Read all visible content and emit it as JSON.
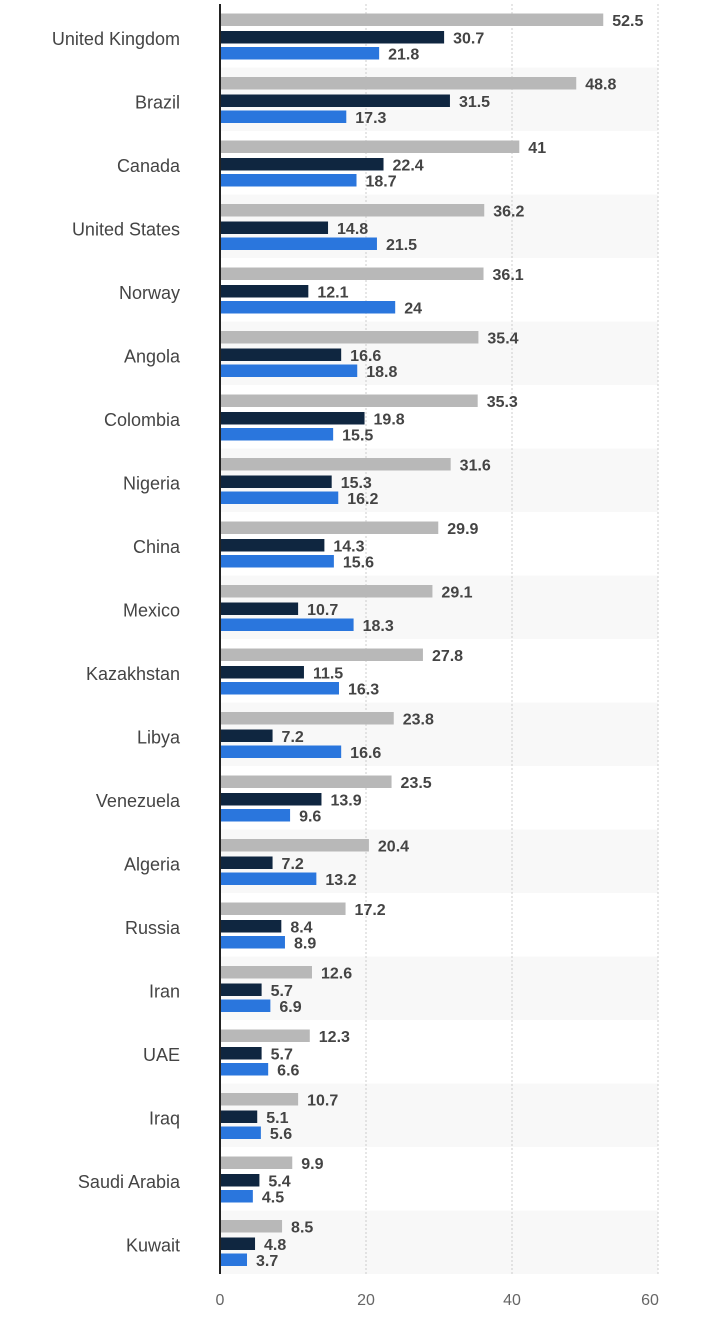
{
  "chart_data": {
    "type": "bar",
    "orientation": "horizontal",
    "categories": [
      "United Kingdom",
      "Brazil",
      "Canada",
      "United States",
      "Norway",
      "Angola",
      "Colombia",
      "Nigeria",
      "China",
      "Mexico",
      "Kazakhstan",
      "Libya",
      "Venezuela",
      "Algeria",
      "Russia",
      "Iran",
      "UAE",
      "Iraq",
      "Saudi Arabia",
      "Kuwait"
    ],
    "series": [
      {
        "color": "#b8b8b8",
        "values": [
          52.5,
          48.8,
          41,
          36.2,
          36.1,
          35.4,
          35.3,
          31.6,
          29.9,
          29.1,
          27.8,
          23.8,
          23.5,
          20.4,
          17.2,
          12.6,
          12.3,
          10.7,
          9.9,
          8.5
        ]
      },
      {
        "color": "#0f2640",
        "values": [
          30.7,
          31.5,
          22.4,
          14.8,
          12.1,
          16.6,
          19.8,
          15.3,
          14.3,
          10.7,
          11.5,
          7.2,
          13.9,
          7.2,
          8.4,
          5.7,
          5.7,
          5.1,
          5.4,
          4.8
        ]
      },
      {
        "color": "#2a76dd",
        "values": [
          21.8,
          17.3,
          18.7,
          21.5,
          24,
          18.8,
          15.5,
          16.2,
          15.6,
          18.3,
          16.3,
          16.6,
          9.6,
          13.2,
          8.9,
          6.9,
          6.6,
          5.6,
          4.5,
          3.7
        ]
      }
    ],
    "xlim": [
      0,
      60
    ],
    "xticks": [
      "0",
      "20",
      "40",
      "60"
    ],
    "grid": true,
    "title": "",
    "xlabel": "",
    "ylabel": "",
    "legend": "none"
  }
}
